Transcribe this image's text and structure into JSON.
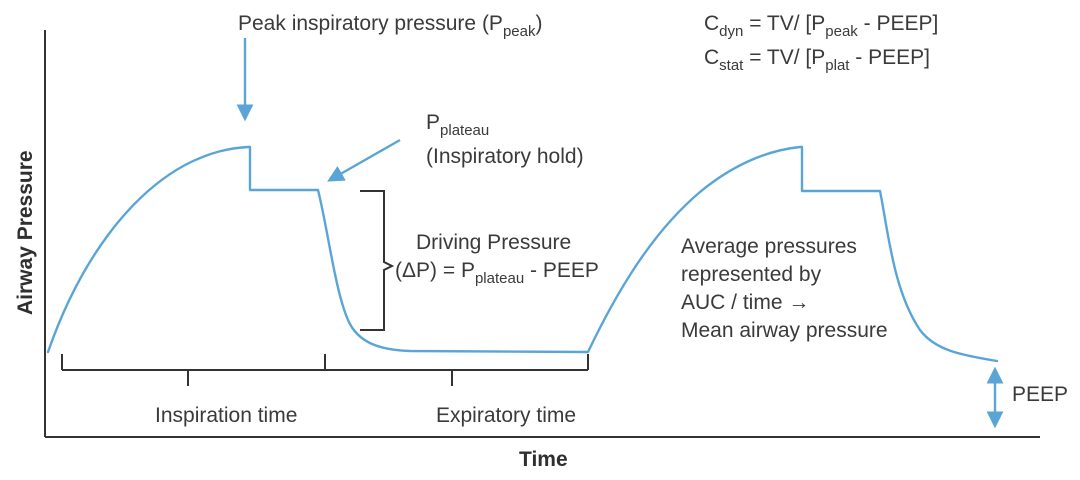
{
  "colors": {
    "curve": "#5aa5d6",
    "axis": "#333333",
    "text": "#3a3a3a"
  },
  "axes": {
    "y_label": "Airway Pressure",
    "x_label": "Time"
  },
  "annotations": {
    "peak": {
      "main": "Peak inspiratory pressure (P",
      "sub": "peak",
      "close": ")"
    },
    "plateau": {
      "main": "P",
      "sub": "plateau",
      "line2": "(Inspiratory hold)"
    },
    "driving": {
      "line1": "Driving Pressure",
      "line2_main": "(ΔP) = P",
      "line2_sub": "plateau",
      "line2_rest": " - PEEP"
    },
    "cdyn": {
      "C": "C",
      "sub1": "dyn",
      "mid": " = TV/ [P",
      "sub2": "peak",
      "rest": " - PEEP]"
    },
    "cstat": {
      "C": "C",
      "sub1": "stat",
      "mid": " = TV/ [P",
      "sub2": "plat",
      "rest": " - PEEP]"
    },
    "average": {
      "line1": "Average pressures",
      "line2": "represented by",
      "line3": "AUC / time →",
      "line4": "Mean airway pressure"
    },
    "peep": "PEEP"
  },
  "brackets": {
    "inspiration": "Inspiration time",
    "expiratory": "Expiratory time"
  }
}
